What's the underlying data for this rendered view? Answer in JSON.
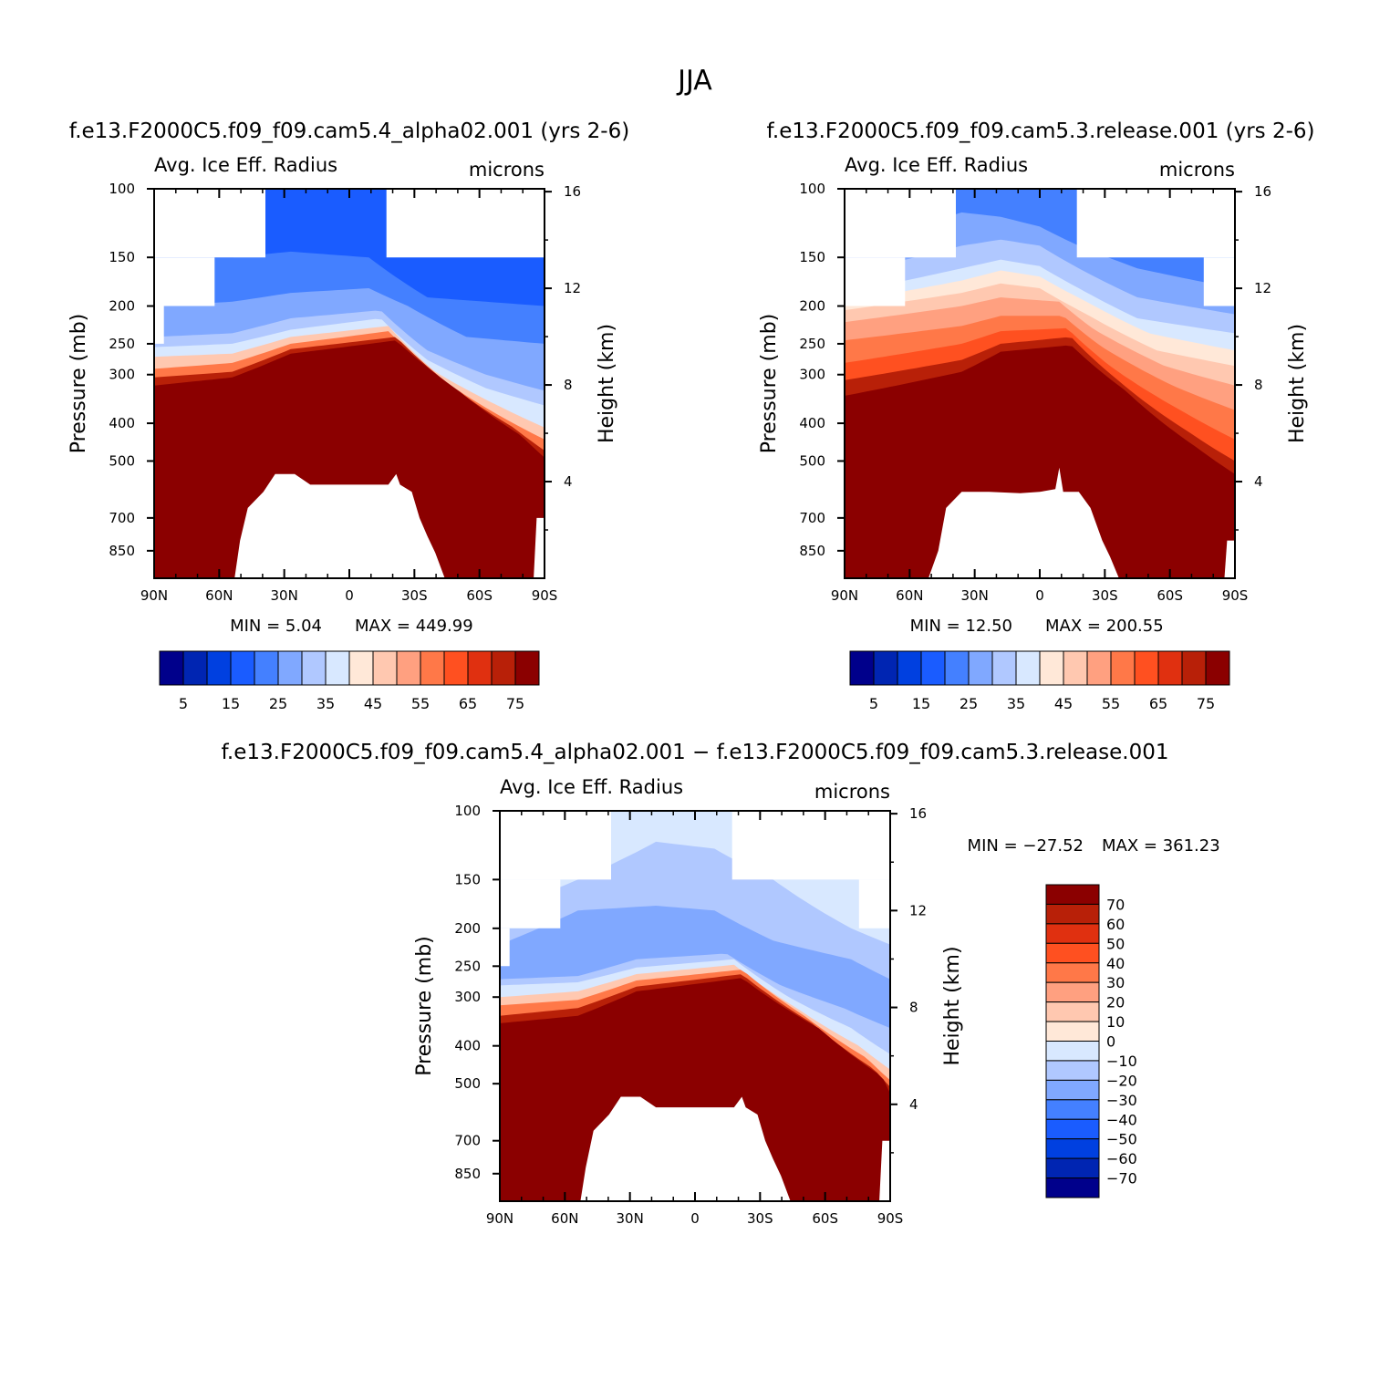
{
  "season": "JJA",
  "colors": {
    "palette": [
      "#00008b",
      "#0025b2",
      "#0040e0",
      "#1a5cff",
      "#4480ff",
      "#80a8ff",
      "#b0c8ff",
      "#d8e8ff",
      "#ffe8d8",
      "#ffc8b0",
      "#ffa080",
      "#ff7848",
      "#ff5020",
      "#e03010",
      "#b82008",
      "#8b0000"
    ]
  },
  "chart_data": [
    {
      "type": "contour",
      "title": "f.e13.F2000C5.f09_f09.cam5.4_alpha02.001 (yrs 2-6)",
      "variable": "Avg. Ice Eff. Radius",
      "units": "microns",
      "ylabel": "Pressure (mb)",
      "ylabel2": "Height (km)",
      "xticks": [
        "90N",
        "60N",
        "30N",
        "0",
        "30S",
        "60S",
        "90S"
      ],
      "pressure_ticks": [
        100,
        150,
        200,
        250,
        300,
        400,
        500,
        700,
        850
      ],
      "height_ticks": [
        16,
        12,
        8,
        4
      ],
      "min_label": "MIN =    5.04",
      "max_label": "MAX = 449.99",
      "min": 5.04,
      "max": 449.99,
      "levels": [
        5,
        10,
        15,
        20,
        25,
        30,
        35,
        40,
        45,
        50,
        55,
        60,
        65,
        70,
        75
      ],
      "colorbar_labels": [
        "5",
        "15",
        "25",
        "35",
        "45",
        "55",
        "65",
        "75"
      ]
    },
    {
      "type": "contour",
      "title": "f.e13.F2000C5.f09_f09.cam5.3.release.001 (yrs 2-6)",
      "variable": "Avg. Ice Eff. Radius",
      "units": "microns",
      "ylabel": "Pressure (mb)",
      "ylabel2": "Height (km)",
      "xticks": [
        "90N",
        "60N",
        "30N",
        "0",
        "30S",
        "60S",
        "90S"
      ],
      "pressure_ticks": [
        100,
        150,
        200,
        250,
        300,
        400,
        500,
        700,
        850
      ],
      "height_ticks": [
        16,
        12,
        8,
        4
      ],
      "min_label": "MIN =   12.50",
      "max_label": "MAX = 200.55",
      "min": 12.5,
      "max": 200.55,
      "levels": [
        5,
        10,
        15,
        20,
        25,
        30,
        35,
        40,
        45,
        50,
        55,
        60,
        65,
        70,
        75
      ],
      "colorbar_labels": [
        "5",
        "15",
        "25",
        "35",
        "45",
        "55",
        "65",
        "75"
      ]
    },
    {
      "type": "contour",
      "title": "f.e13.F2000C5.f09_f09.cam5.4_alpha02.001 − f.e13.F2000C5.f09_f09.cam5.3.release.001",
      "variable": "Avg. Ice Eff. Radius",
      "units": "microns",
      "ylabel": "Pressure (mb)",
      "ylabel2": "Height (km)",
      "xticks": [
        "90N",
        "60N",
        "30N",
        "0",
        "30S",
        "60S",
        "90S"
      ],
      "pressure_ticks": [
        100,
        150,
        200,
        250,
        300,
        400,
        500,
        700,
        850
      ],
      "height_ticks": [
        16,
        12,
        8,
        4
      ],
      "min_label": "MIN = −27.52",
      "max_label": "MAX = 361.23",
      "min": -27.52,
      "max": 361.23,
      "levels": [
        -70,
        -60,
        -50,
        -40,
        -30,
        -20,
        -10,
        0,
        10,
        20,
        30,
        40,
        50,
        60,
        70
      ],
      "colorbar_labels": [
        "70",
        "60",
        "50",
        "40",
        "30",
        "20",
        "10",
        "0",
        "−10",
        "−20",
        "−30",
        "−40",
        "−50",
        "−60",
        "−70"
      ]
    }
  ]
}
